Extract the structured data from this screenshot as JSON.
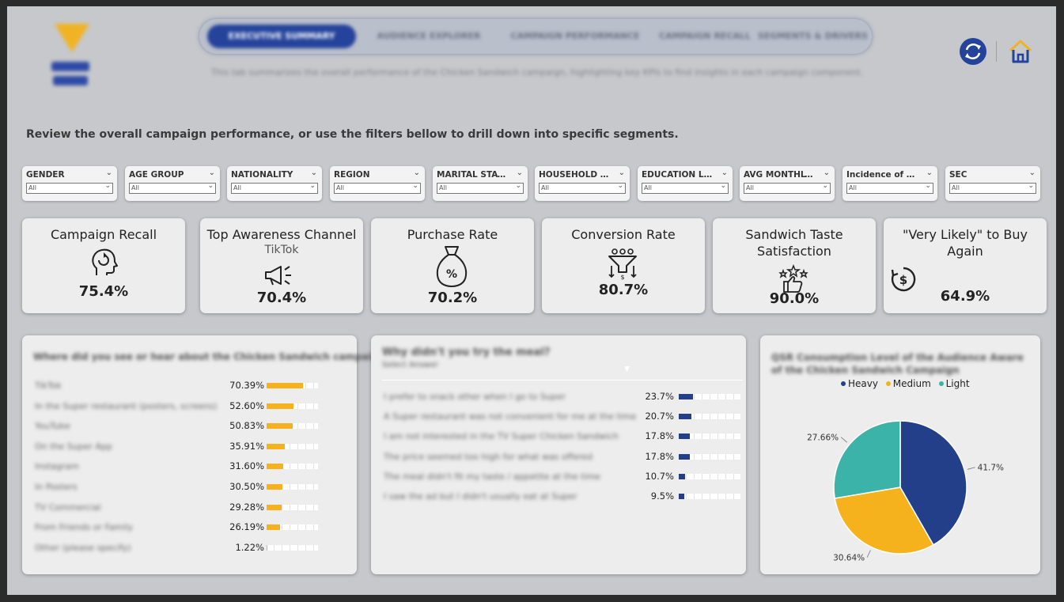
{
  "nav": {
    "tabs": [
      {
        "label": "EXECUTIVE SUMMARY",
        "active": true
      },
      {
        "label": "AUDIENCE EXPLORER",
        "active": false
      },
      {
        "label": "CAMPAIGN PERFORMANCE",
        "active": false
      },
      {
        "label": "CAMPAIGN RECALL",
        "active": false
      },
      {
        "label": "SEGMENTS & DRIVERS",
        "active": false
      }
    ],
    "subtitle": "This tab summarizes the overall performance of the Chicken Sandwich campaign, highlighting key KPIs to find insights in each campaign component."
  },
  "icons": {
    "refresh": "refresh-icon",
    "home": "home-icon"
  },
  "review_text": "Review the overall campaign performance, or use the filters bellow to drill down into specific segments.",
  "filters": [
    {
      "label": "GENDER",
      "value": "All"
    },
    {
      "label": "AGE GROUP",
      "value": "All"
    },
    {
      "label": "NATIONALITY",
      "value": "All"
    },
    {
      "label": "REGION",
      "value": "All"
    },
    {
      "label": "MARITAL STATUS",
      "value": "All"
    },
    {
      "label": "HOUSEHOLD SIZE",
      "value": "All"
    },
    {
      "label": "EDUCATION LEVEL",
      "value": "All"
    },
    {
      "label": "AVG MONTHLY H/H I...",
      "value": "All"
    },
    {
      "label": "Incidence of Child...",
      "value": "All"
    },
    {
      "label": "SEC",
      "value": "All"
    }
  ],
  "kpis": [
    {
      "title": "Campaign Recall",
      "sub": "",
      "value": "75.4%",
      "icon": "head-refresh-icon"
    },
    {
      "title": "Top Awareness Channel",
      "sub": "TikTok",
      "value": "70.4%",
      "icon": "megaphone-icon"
    },
    {
      "title": "Purchase Rate",
      "sub": "",
      "value": "70.2%",
      "icon": "money-bag-icon"
    },
    {
      "title": "Conversion Rate",
      "sub": "",
      "value": "80.7%",
      "icon": "funnel-icon"
    },
    {
      "title": "Sandwich Taste Satisfaction",
      "sub": "",
      "value": "90.0%",
      "icon": "thumbs-up-stars-icon"
    },
    {
      "title": "\"Very Likely\" to Buy Again",
      "sub": "",
      "value": "64.9%",
      "icon": "dollar-cycle-icon"
    }
  ],
  "colors": {
    "gold": "#f5b21d",
    "navy": "#233f8a",
    "teal": "#3cb3a8"
  },
  "chart_data": [
    {
      "type": "bar",
      "title": "Where did you see or hear about the Chicken Sandwich campaign?",
      "categories": [
        "TikTok",
        "In the Super restaurant (posters, screens)",
        "YouTube",
        "On the Super App",
        "Instagram",
        "In Posters",
        "TV Commercial",
        "From Friends or Family",
        "Other (please specify)"
      ],
      "values": [
        70.39,
        52.6,
        50.83,
        35.91,
        31.6,
        30.5,
        29.28,
        26.19,
        1.22
      ],
      "labels": [
        "70.39%",
        "52.60%",
        "50.83%",
        "35.91%",
        "31.60%",
        "30.50%",
        "29.28%",
        "26.19%",
        "1.22%"
      ],
      "xlim": [
        0,
        100
      ]
    },
    {
      "type": "bar",
      "title": "Why didn't you try the meal?",
      "subtitle": "Select Answer",
      "categories": [
        "I prefer to snack other when I go to Super",
        "A Super restaurant was not convenient for me at the time",
        "I am not interested in the TV Super Chicken Sandwich",
        "The price seemed too high for what was offered",
        "The meal didn't fit my taste / appetite at the time",
        "I saw the ad but I didn't usually eat at Super"
      ],
      "values": [
        23.7,
        20.7,
        17.8,
        17.8,
        10.7,
        9.5
      ],
      "labels": [
        "23.7%",
        "20.7%",
        "17.8%",
        "17.8%",
        "10.7%",
        "9.5%"
      ],
      "xlim": [
        0,
        100
      ]
    },
    {
      "type": "pie",
      "title": "QSR Consumption Level of the Audience Aware of the Chicken Sandwich Campaign",
      "legend": [
        "Heavy",
        "Medium",
        "Light"
      ],
      "values": [
        41.7,
        30.64,
        27.66
      ],
      "labels": [
        "41.7%",
        "30.64%",
        "27.66%"
      ]
    }
  ]
}
